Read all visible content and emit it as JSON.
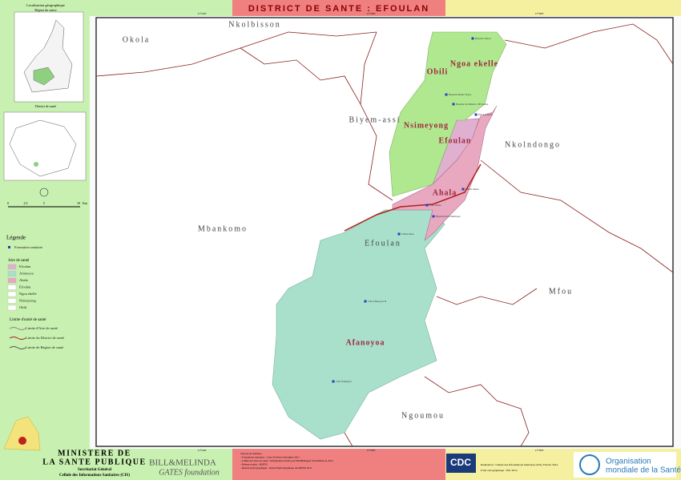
{
  "header": {
    "title": "DISTRICT DE SANTE : EFOULAN"
  },
  "inset": {
    "title": "Localisation géographique",
    "region": "Région du centre",
    "district": "District de santé"
  },
  "scale": {
    "labels": [
      "0",
      "2,5",
      "5",
      "10"
    ],
    "unit": "Km"
  },
  "legend": {
    "title": "Légende",
    "facility": "Formation sanitaire",
    "areas_title": "Aire de santé",
    "areas": [
      "Efoulan",
      "Afanoyoa",
      "Ahala",
      "Efoulan",
      "Ngoa ekelle",
      "Nsimeyong",
      "Obili"
    ],
    "limits_title": "Limite d'unité de santé",
    "limits": [
      "Limite d'Aire de santé",
      "Limite du District de santé",
      "Limite de Région de santé"
    ]
  },
  "map": {
    "neighbors": [
      "Okola",
      "Nkolbisson",
      "Biyem-assi",
      "Nkolndongo",
      "Mbankomo",
      "Efoulan",
      "Mfou",
      "Ngoumou"
    ],
    "areas": [
      "Obili",
      "Ngoa ekelle",
      "Nsimeyong",
      "Efoulan",
      "Ahala",
      "Afanoyoa"
    ],
    "facilities": [
      "Hopital Jamot",
      "Hopital Marie Wyss",
      "Hopital de District d'Efoulan",
      "Fm Ad Ipem",
      "CMA Ahala",
      "CSI Ahala",
      "Hopital Psychiatrique",
      "CMA Afan",
      "CSI Afanoyoa II",
      "CSI Nomayos"
    ],
    "coords": [
      "11°24'E",
      "11°30'E",
      "11°36'E",
      "11°24'E",
      "11°30'E",
      "11°36'E"
    ]
  },
  "footer": {
    "ministry": [
      "MINISTERE DE",
      "LA SANTE PUBLIQUE"
    ],
    "sg": "Secrétariat Général",
    "cis": "Cellule des Informations Sanitaires (CIS)",
    "gates": [
      "BILL&MELINDA",
      "GATES foundation"
    ],
    "sources": [
      "Sources de données :",
      "- Formations sanitaires : Liste de février-décembre 2011",
      "- Limite des aires de santé : Information extraite par HealthMapper WorldWide en 2012",
      "- Réseau routier : MINTP",
      "- Réseau hydrographique : Global Hydrographique du MINTP 2011"
    ],
    "cdc": "CDC",
    "publisher": [
      "Réalisation : Cellule des Informations Sanitaires (CIS), Février 2014",
      "Fond cartographique : INC 2012"
    ],
    "who": [
      "Organisation",
      "mondiale de la Santé"
    ]
  }
}
